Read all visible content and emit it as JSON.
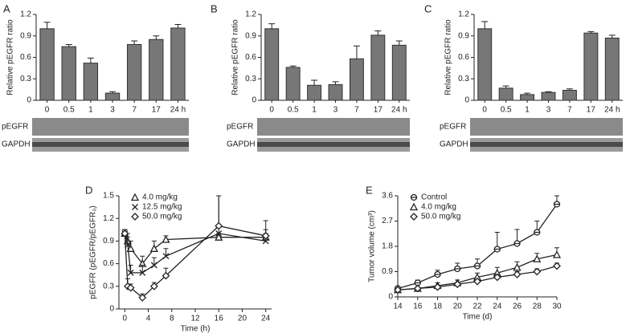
{
  "chart_data": [
    {
      "panel": "A",
      "type": "bar",
      "ylabel": "Relative pEGFR ratio",
      "categories": [
        "0",
        "0.5",
        "1",
        "3",
        "7",
        "17",
        "24 h"
      ],
      "values": [
        1.0,
        0.75,
        0.52,
        0.1,
        0.78,
        0.85,
        1.01
      ],
      "errors": [
        0.09,
        0.03,
        0.07,
        0.02,
        0.05,
        0.05,
        0.05
      ],
      "color": "#777777",
      "ylim": [
        0,
        1.2
      ],
      "yticks": [
        0,
        0.3,
        0.6,
        0.9,
        1.2
      ],
      "blot_labels": [
        "pEGFR",
        "GAPDH"
      ]
    },
    {
      "panel": "B",
      "type": "bar",
      "ylabel": "Relative pEGFR ratio",
      "categories": [
        "0",
        "0.5",
        "1",
        "3",
        "7",
        "17",
        "24 h"
      ],
      "values": [
        1.0,
        0.46,
        0.21,
        0.22,
        0.58,
        0.91,
        0.77
      ],
      "errors": [
        0.07,
        0.02,
        0.07,
        0.04,
        0.18,
        0.06,
        0.06
      ],
      "color": "#777777",
      "ylim": [
        0,
        1.2
      ],
      "yticks": [
        0,
        0.3,
        0.6,
        0.9,
        1.2
      ],
      "blot_labels": [
        "pEGFR",
        "GAPDH"
      ]
    },
    {
      "panel": "C",
      "type": "bar",
      "ylabel": "Relative pEGFR ratio",
      "categories": [
        "0",
        "0.5",
        "1",
        "3",
        "7",
        "17",
        "24 h"
      ],
      "values": [
        1.0,
        0.17,
        0.08,
        0.11,
        0.14,
        0.94,
        0.87
      ],
      "errors": [
        0.1,
        0.03,
        0.02,
        0.01,
        0.02,
        0.02,
        0.04
      ],
      "color": "#777777",
      "ylim": [
        0,
        1.2
      ],
      "yticks": [
        0,
        0.3,
        0.6,
        0.9,
        1.2
      ],
      "blot_labels": [
        "pEGFR",
        "GAPDH"
      ]
    },
    {
      "panel": "D",
      "type": "line",
      "xlabel": "Time (h)",
      "ylabel": "pEGFR (pEGFR/pEGFR₀)",
      "x": [
        0,
        0.5,
        1,
        3,
        5,
        7,
        16,
        24
      ],
      "series": [
        {
          "name": "4.0 mg/kg",
          "marker": "triangle",
          "color": "#222222",
          "values": [
            1.0,
            0.9,
            0.8,
            0.6,
            0.8,
            0.92,
            0.95,
            0.95
          ],
          "errors": [
            0.05,
            0.1,
            0.1,
            0.1,
            0.1,
            0.05,
            0.05,
            0.1
          ]
        },
        {
          "name": "12.5 mg/kg",
          "marker": "x",
          "color": "#222222",
          "values": [
            1.0,
            0.85,
            0.48,
            0.48,
            0.58,
            0.7,
            1.0,
            0.9
          ],
          "errors": [
            0.05,
            0.1,
            0.1,
            0.1,
            0.1,
            0.1,
            0.5,
            0.1
          ]
        },
        {
          "name": "50.0 mg/kg",
          "marker": "diamond",
          "color": "#222222",
          "values": [
            1.0,
            0.3,
            0.28,
            0.15,
            0.3,
            0.44,
            1.1,
            0.97
          ],
          "errors": [
            0.05,
            0.1,
            0.05,
            0.05,
            0.05,
            0.1,
            0.4,
            0.2
          ]
        }
      ],
      "xlim": [
        -1,
        25
      ],
      "xticks": [
        0,
        4,
        8,
        12,
        16,
        20,
        24
      ],
      "ylim": [
        0,
        1.5
      ],
      "yticks": [
        0,
        0.3,
        0.6,
        0.9,
        1.2,
        1.5
      ]
    },
    {
      "panel": "E",
      "type": "line",
      "xlabel": "Time (d)",
      "ylabel": "Tumor volume (cm³)",
      "x": [
        14,
        16,
        18,
        20,
        22,
        24,
        26,
        28,
        30
      ],
      "series": [
        {
          "name": "Control",
          "marker": "circle",
          "color": "#222222",
          "values": [
            0.3,
            0.5,
            0.8,
            1.0,
            1.1,
            1.7,
            1.9,
            2.3,
            3.3
          ],
          "errors": [
            0.05,
            0.1,
            0.15,
            0.2,
            0.25,
            0.6,
            0.5,
            0.4,
            0.3
          ]
        },
        {
          "name": "4.0 mg/kg",
          "marker": "triangle",
          "color": "#222222",
          "values": [
            0.25,
            0.3,
            0.4,
            0.5,
            0.7,
            0.85,
            1.05,
            1.35,
            1.5
          ],
          "errors": [
            0.05,
            0.05,
            0.1,
            0.1,
            0.15,
            0.2,
            0.2,
            0.2,
            0.25
          ]
        },
        {
          "name": "50.0 mg/kg",
          "marker": "diamond",
          "color": "#222222",
          "values": [
            0.25,
            0.3,
            0.35,
            0.45,
            0.55,
            0.7,
            0.8,
            0.9,
            1.1
          ],
          "errors": [
            0.05,
            0.05,
            0.05,
            0.05,
            0.05,
            0.1,
            0.1,
            0.1,
            0.1
          ]
        }
      ],
      "xlim": [
        14,
        30
      ],
      "xticks": [
        14,
        16,
        18,
        20,
        22,
        24,
        26,
        28,
        30
      ],
      "ylim": [
        0,
        3.6
      ],
      "yticks": [
        0,
        0.9,
        1.8,
        2.7,
        3.6
      ]
    }
  ]
}
